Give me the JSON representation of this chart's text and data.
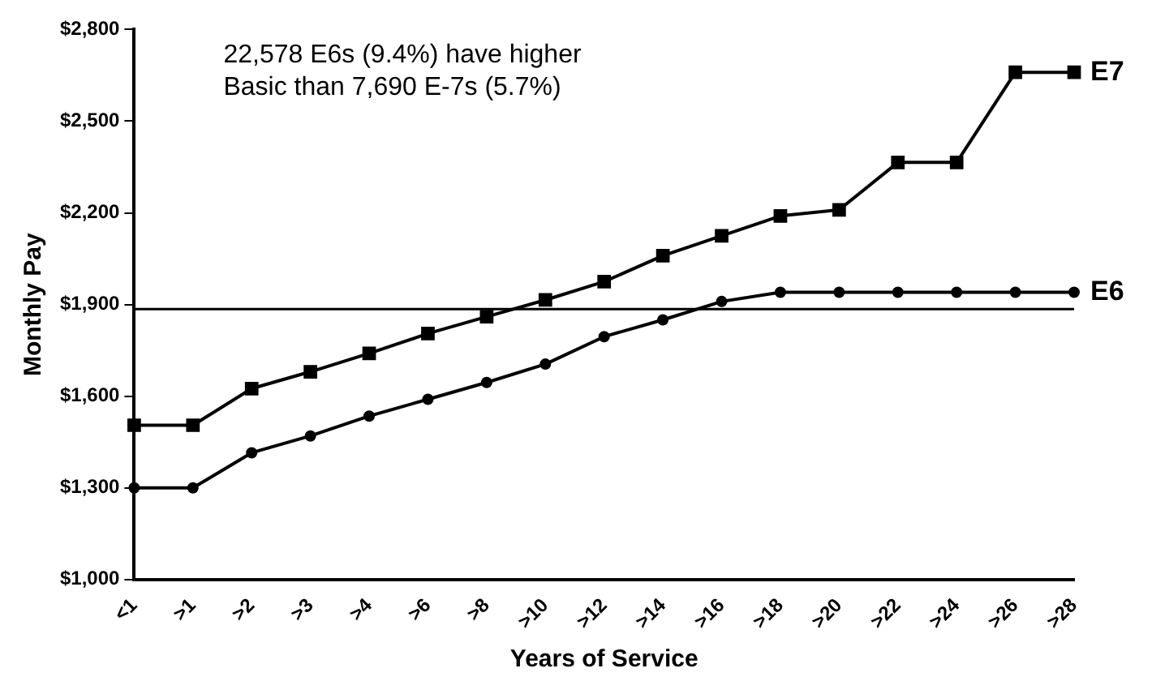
{
  "chart_data": {
    "type": "line",
    "xlabel": "Years of Service",
    "ylabel": "Monthly Pay",
    "annotations": [
      "22,578 E6s (9.4%) have higher",
      "Basic than 7,690 E-7s (5.7%)"
    ],
    "categories": [
      "<1",
      ">1",
      ">2",
      ">3",
      ">4",
      ">6",
      ">8",
      ">10",
      ">12",
      ">14",
      ">16",
      ">18",
      ">20",
      ">22",
      ">24",
      ">26",
      ">28"
    ],
    "series": [
      {
        "name": "E7",
        "color": "#000000",
        "marker": "square",
        "values": [
          1505,
          1505,
          1625,
          1680,
          1740,
          1805,
          1860,
          1915,
          1975,
          2060,
          2125,
          2190,
          2210,
          2365,
          2365,
          2660,
          2660
        ]
      },
      {
        "name": "E6",
        "color": "#000000",
        "marker": "circle",
        "values": [
          1300,
          1300,
          1415,
          1470,
          1535,
          1590,
          1645,
          1705,
          1795,
          1850,
          1910,
          1940,
          1940,
          1940,
          1940,
          1940,
          1940
        ]
      }
    ],
    "ref_lines": [
      {
        "axis": "y",
        "value": 1885,
        "color": "#000000"
      }
    ],
    "ylim": [
      1000,
      2800
    ],
    "yticks": [
      {
        "value": 1000,
        "label": "$1,000"
      },
      {
        "value": 1300,
        "label": "$1,300"
      },
      {
        "value": 1600,
        "label": "$1,600"
      },
      {
        "value": 1900,
        "label": "$1,900"
      },
      {
        "value": 2200,
        "label": "$2,200"
      },
      {
        "value": 2500,
        "label": "$2,500"
      },
      {
        "value": 2800,
        "label": "$2,800"
      }
    ],
    "grid": false,
    "legend": false,
    "line_style": "solid"
  }
}
